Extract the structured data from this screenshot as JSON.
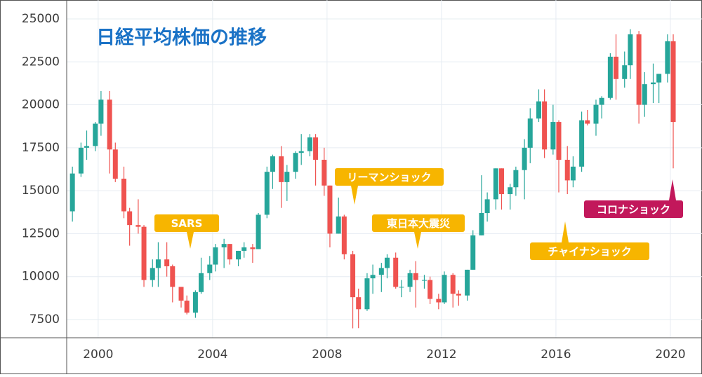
{
  "chart_data": {
    "type": "candlestick",
    "title": "日経平均株価の推移",
    "x": [
      1999.1,
      1999.4,
      1999.6,
      1999.9,
      2000.1,
      2000.4,
      2000.6,
      2000.9,
      2001.1,
      2001.4,
      2001.6,
      2001.9,
      2002.1,
      2002.4,
      2002.6,
      2002.9,
      2003.1,
      2003.4,
      2003.6,
      2003.9,
      2004.1,
      2004.4,
      2004.6,
      2004.9,
      2005.1,
      2005.4,
      2005.6,
      2005.9,
      2006.1,
      2006.4,
      2006.6,
      2006.9,
      2007.1,
      2007.4,
      2007.6,
      2007.9,
      2008.1,
      2008.4,
      2008.6,
      2008.9,
      2009.1,
      2009.4,
      2009.6,
      2009.9,
      2010.1,
      2010.4,
      2010.6,
      2010.9,
      2011.1,
      2011.4,
      2011.6,
      2011.9,
      2012.1,
      2012.4,
      2012.6,
      2012.9,
      2013.1,
      2013.4,
      2013.6,
      2013.9,
      2014.1,
      2014.4,
      2014.6,
      2014.9,
      2015.1,
      2015.4,
      2015.6,
      2015.9,
      2016.1,
      2016.4,
      2016.6,
      2016.9,
      2017.1,
      2017.4,
      2017.6,
      2017.9,
      2018.1,
      2018.4,
      2018.6,
      2018.9,
      2019.1,
      2019.4,
      2019.6,
      2019.9,
      2020.1
    ],
    "open": [
      13800,
      16000,
      17500,
      17600,
      18900,
      20300,
      17400,
      15700,
      13800,
      13000,
      12900,
      9800,
      10500,
      11000,
      10600,
      9400,
      8600,
      7900,
      9100,
      10200,
      10700,
      11700,
      11900,
      11000,
      11500,
      11700,
      11600,
      13600,
      16100,
      17000,
      15500,
      16100,
      17200,
      17300,
      18100,
      16800,
      15300,
      12500,
      13500,
      11300,
      8800,
      8100,
      9900,
      10100,
      10500,
      11100,
      9400,
      9400,
      10200,
      9800,
      9800,
      8700,
      8500,
      10100,
      9000,
      8900,
      10400,
      12400,
      13700,
      14500,
      16300,
      14800,
      15200,
      16200,
      17500,
      19200,
      20200,
      17400,
      19000,
      16800,
      15600,
      16400,
      19100,
      18900,
      20000,
      20400,
      22800,
      21500,
      22300,
      24100,
      20000,
      21200,
      21300,
      21800,
      23700
    ],
    "high": [
      16400,
      17800,
      18500,
      19000,
      20800,
      20800,
      17800,
      16400,
      14000,
      14500,
      13000,
      11000,
      12000,
      12000,
      10700,
      9400,
      8900,
      9200,
      11100,
      11200,
      11900,
      12200,
      11900,
      11500,
      12000,
      11900,
      13700,
      16400,
      17100,
      17600,
      16500,
      17300,
      18300,
      18300,
      18300,
      17500,
      15300,
      14600,
      13600,
      11500,
      9300,
      10200,
      10700,
      10800,
      11300,
      11400,
      9800,
      10400,
      10900,
      10100,
      10000,
      9000,
      10300,
      10200,
      9200,
      10400,
      12700,
      15900,
      14900,
      16300,
      16300,
      15400,
      16400,
      18000,
      19800,
      20900,
      20900,
      20000,
      19100,
      17600,
      17000,
      19600,
      19700,
      20300,
      20500,
      23000,
      24100,
      23100,
      24400,
      24300,
      21900,
      22400,
      21800,
      24100,
      24100
    ],
    "low": [
      13200,
      15800,
      16800,
      17300,
      18200,
      16000,
      15500,
      13400,
      11800,
      12500,
      9400,
      9400,
      9400,
      10000,
      8500,
      8200,
      7800,
      7600,
      9000,
      9800,
      10300,
      10500,
      10700,
      10600,
      11100,
      10800,
      11600,
      13400,
      15100,
      14000,
      14400,
      15700,
      16500,
      17000,
      15300,
      14700,
      11700,
      12500,
      11000,
      6990,
      7000,
      8000,
      9000,
      9100,
      9900,
      9300,
      8800,
      9100,
      8200,
      9300,
      8400,
      8100,
      8400,
      8200,
      8300,
      8600,
      10400,
      12400,
      13200,
      13900,
      13900,
      13900,
      14700,
      14500,
      16600,
      19000,
      16900,
      17100,
      14900,
      14800,
      15200,
      16100,
      18800,
      18200,
      19200,
      20300,
      20300,
      21000,
      21500,
      18900,
      19300,
      20100,
      20100,
      21300,
      16300
    ],
    "close": [
      16000,
      17500,
      17600,
      18900,
      20300,
      17400,
      15700,
      13800,
      13000,
      12900,
      9800,
      10500,
      11000,
      10600,
      9400,
      8600,
      7900,
      9100,
      10200,
      10700,
      11700,
      11900,
      11000,
      11500,
      11700,
      11600,
      13600,
      16100,
      17000,
      15500,
      16100,
      17200,
      17300,
      18100,
      16800,
      15300,
      12500,
      13500,
      11300,
      8800,
      8100,
      9900,
      10100,
      10500,
      11100,
      9400,
      9400,
      10200,
      9800,
      9800,
      8700,
      8500,
      10100,
      9000,
      8900,
      10400,
      12400,
      13700,
      14500,
      16300,
      14800,
      15200,
      16200,
      17500,
      19200,
      20200,
      17400,
      19000,
      16800,
      15600,
      16400,
      19100,
      18900,
      20000,
      20400,
      22800,
      21500,
      22300,
      24100,
      20000,
      21200,
      21300,
      21800,
      23700,
      19000
    ],
    "up_color": "#26a69a",
    "down_color": "#ef5350",
    "xlim": [
      1998.9,
      2020.86
    ],
    "xticks": [
      2000,
      2004,
      2008,
      2012,
      2016,
      2020
    ],
    "ylim": [
      6440,
      26100
    ],
    "yticks": [
      7500,
      10000,
      12500,
      15000,
      17500,
      20000,
      22500,
      25000
    ],
    "grid": true,
    "annotations": [
      {
        "text": "SARS",
        "color": "#f7b500"
      },
      {
        "text": "リーマンショック",
        "color": "#f7b500"
      },
      {
        "text": "東日本大震災",
        "color": "#f7b500"
      },
      {
        "text": "チャイナショック",
        "color": "#f7b500"
      },
      {
        "text": "コロナショック",
        "color": "#c2185b"
      }
    ]
  }
}
